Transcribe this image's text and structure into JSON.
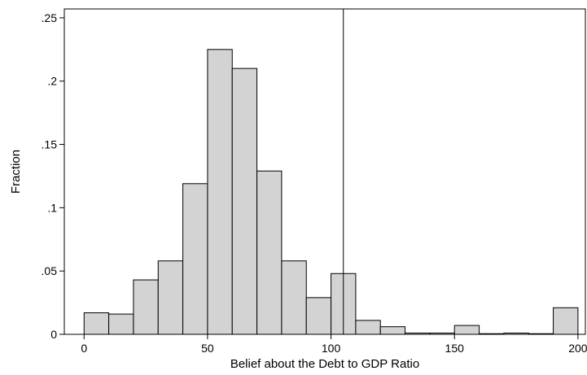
{
  "chart_data": {
    "type": "bar",
    "title": "",
    "xlabel": "Belief about the Debt to GDP Ratio",
    "ylabel": "Fraction",
    "xlim": [
      -8,
      203
    ],
    "ylim": [
      0,
      0.257
    ],
    "bin_width": 10,
    "bins": [
      {
        "start": 0,
        "end": 10,
        "value": 0.017
      },
      {
        "start": 10,
        "end": 20,
        "value": 0.016
      },
      {
        "start": 20,
        "end": 30,
        "value": 0.043
      },
      {
        "start": 30,
        "end": 40,
        "value": 0.058
      },
      {
        "start": 40,
        "end": 50,
        "value": 0.119
      },
      {
        "start": 50,
        "end": 60,
        "value": 0.225
      },
      {
        "start": 60,
        "end": 70,
        "value": 0.21
      },
      {
        "start": 70,
        "end": 80,
        "value": 0.129
      },
      {
        "start": 80,
        "end": 90,
        "value": 0.058
      },
      {
        "start": 90,
        "end": 100,
        "value": 0.029
      },
      {
        "start": 100,
        "end": 110,
        "value": 0.048
      },
      {
        "start": 110,
        "end": 120,
        "value": 0.011
      },
      {
        "start": 120,
        "end": 130,
        "value": 0.006
      },
      {
        "start": 130,
        "end": 140,
        "value": 0.001
      },
      {
        "start": 140,
        "end": 150,
        "value": 0.001
      },
      {
        "start": 150,
        "end": 160,
        "value": 0.007
      },
      {
        "start": 160,
        "end": 170,
        "value": 0.0005
      },
      {
        "start": 170,
        "end": 180,
        "value": 0.001
      },
      {
        "start": 180,
        "end": 190,
        "value": 0.0005
      },
      {
        "start": 190,
        "end": 200,
        "value": 0.021
      }
    ],
    "reference_line_x": 105,
    "x_ticks": [
      {
        "value": 0,
        "label": "0"
      },
      {
        "value": 50,
        "label": "50"
      },
      {
        "value": 100,
        "label": "100"
      },
      {
        "value": 150,
        "label": "150"
      },
      {
        "value": 200,
        "label": "200"
      }
    ],
    "y_ticks": [
      {
        "value": 0,
        "label": "0"
      },
      {
        "value": 0.05,
        "label": ".05"
      },
      {
        "value": 0.1,
        "label": ".1"
      },
      {
        "value": 0.15,
        "label": ".15"
      },
      {
        "value": 0.2,
        "label": ".2"
      },
      {
        "value": 0.25,
        "label": ".25"
      }
    ],
    "grid": false,
    "legend": "none"
  }
}
